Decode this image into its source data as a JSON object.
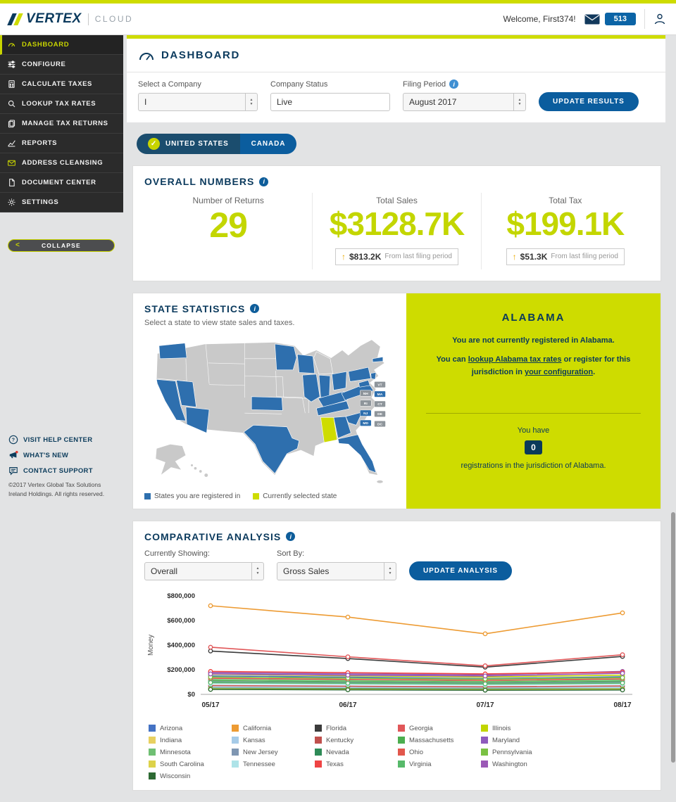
{
  "header": {
    "brand": "VERTEX",
    "brand_suffix": "CLOUD",
    "welcome": "Welcome, First374!",
    "mail_badge": "513"
  },
  "sidebar": {
    "items": [
      {
        "label": "DASHBOARD",
        "icon": "gauge-icon",
        "active": true
      },
      {
        "label": "CONFIGURE",
        "icon": "sliders-icon",
        "active": false
      },
      {
        "label": "CALCULATE TAXES",
        "icon": "calculator-icon",
        "active": false
      },
      {
        "label": "LOOKUP TAX RATES",
        "icon": "magnifier-icon",
        "active": false
      },
      {
        "label": "MANAGE TAX RETURNS",
        "icon": "copy-icon",
        "active": false
      },
      {
        "label": "REPORTS",
        "icon": "chart-icon",
        "active": false
      },
      {
        "label": "ADDRESS CLEANSING",
        "icon": "envelope-check-icon",
        "active": false
      },
      {
        "label": "DOCUMENT CENTER",
        "icon": "document-icon",
        "active": false
      },
      {
        "label": "SETTINGS",
        "icon": "gear-icon",
        "active": false
      }
    ],
    "collapse_label": "COLLAPSE",
    "help_links": [
      {
        "label": "VISIT HELP CENTER",
        "icon": "help-icon"
      },
      {
        "label": "WHAT'S NEW",
        "icon": "megaphone-icon"
      },
      {
        "label": "CONTACT SUPPORT",
        "icon": "chat-icon"
      }
    ],
    "copyright": "©2017 Vertex Global Tax Solutions Ireland Holdings. All rights reserved."
  },
  "page": {
    "title": "DASHBOARD"
  },
  "filters": {
    "company_label": "Select a Company",
    "company_value": "I",
    "status_label": "Company Status",
    "status_value": "Live",
    "period_label": "Filing Period",
    "period_value": "August 2017",
    "update_button": "UPDATE RESULTS"
  },
  "tabs": {
    "united_states": "UNITED STATES",
    "canada": "CANADA"
  },
  "overall": {
    "title": "OVERALL NUMBERS",
    "metrics": [
      {
        "label": "Number of Returns",
        "value": "29"
      },
      {
        "label": "Total Sales",
        "value": "$3128.7K",
        "delta": "$813.2K",
        "delta_note": "From last filing period"
      },
      {
        "label": "Total Tax",
        "value": "$199.1K",
        "delta": "$51.3K",
        "delta_note": "From last filing period"
      }
    ]
  },
  "state_statistics": {
    "title": "STATE STATISTICS",
    "subtitle": "Select a state to view state sales and taxes.",
    "legend": [
      {
        "label": "States you are registered in",
        "color": "#2e6fae"
      },
      {
        "label": "Currently selected state",
        "color": "#cedc00"
      }
    ],
    "registered_color": "#2e6fae",
    "selected_color": "#cedc00",
    "default_color": "#c9c9c9",
    "chip_default_color": "#8e959b",
    "registered_states": [
      "WA",
      "CA",
      "NV",
      "AZ",
      "TX",
      "KS",
      "MN",
      "WI",
      "IL",
      "IN",
      "OH",
      "PA",
      "KY",
      "TN",
      "VA",
      "MD",
      "SC",
      "GA",
      "FL",
      "MA",
      "NJ"
    ],
    "selected_state": "AL",
    "chips": [
      "VT",
      "NH",
      "MA",
      "RI",
      "CT",
      "NJ",
      "DE",
      "MD",
      "DC"
    ]
  },
  "selected_panel": {
    "state_name": "ALABAMA",
    "not_registered_text": "You are not currently registered in Alabama.",
    "info_pre": "You can ",
    "link_rates": "lookup Alabama tax rates",
    "info_mid": " or register for this jurisdiction in ",
    "link_config": "your configuration",
    "info_post": ".",
    "you_have": "You have",
    "registration_count": "0",
    "registrations_text": "registrations in the jurisdiction of Alabama."
  },
  "comparative": {
    "title": "COMPARATIVE ANALYSIS",
    "showing_label": "Currently Showing:",
    "showing_value": "Overall",
    "sort_label": "Sort By:",
    "sort_value": "Gross Sales",
    "update_button": "UPDATE ANALYSIS"
  },
  "chart_data": {
    "type": "line",
    "title": "COMPARATIVE ANALYSIS",
    "x": [
      "05/17",
      "06/17",
      "07/17",
      "08/17"
    ],
    "xlabel": "",
    "ylabel": "Money",
    "ylim": [
      0,
      800000
    ],
    "yticks": [
      "$0",
      "$200,000",
      "$400,000",
      "$600,000",
      "$800,000"
    ],
    "grid": false,
    "legend_position": "bottom",
    "series": [
      {
        "name": "Arizona",
        "color": "#4472c4",
        "values": [
          150000,
          140000,
          128000,
          143000
        ]
      },
      {
        "name": "California",
        "color": "#ed9b33",
        "values": [
          720000,
          628000,
          492000,
          662000
        ]
      },
      {
        "name": "Florida",
        "color": "#3b3b3b",
        "values": [
          352000,
          291000,
          221000,
          308000
        ]
      },
      {
        "name": "Georgia",
        "color": "#e15759",
        "values": [
          383000,
          305000,
          232000,
          322000
        ]
      },
      {
        "name": "Illinois",
        "color": "#c1d500",
        "values": [
          163000,
          151000,
          141000,
          156000
        ]
      },
      {
        "name": "Indiana",
        "color": "#e8d060",
        "values": [
          91000,
          85000,
          80000,
          88000
        ]
      },
      {
        "name": "Kansas",
        "color": "#a6cbe8",
        "values": [
          60000,
          55000,
          51000,
          57000
        ]
      },
      {
        "name": "Kentucky",
        "color": "#c0504d",
        "values": [
          71000,
          66000,
          61000,
          68000
        ]
      },
      {
        "name": "Massachusetts",
        "color": "#4cae4f",
        "values": [
          111000,
          102000,
          96000,
          106000
        ]
      },
      {
        "name": "Maryland",
        "color": "#8e5bbd",
        "values": [
          176000,
          166000,
          158000,
          186000
        ]
      },
      {
        "name": "Minnesota",
        "color": "#6fbf73",
        "values": [
          121000,
          112000,
          105000,
          116000
        ]
      },
      {
        "name": "New Jersey",
        "color": "#7f96b2",
        "values": [
          101000,
          95000,
          90000,
          98000
        ]
      },
      {
        "name": "Nevada",
        "color": "#2e8b57",
        "values": [
          50000,
          47000,
          44000,
          46000
        ]
      },
      {
        "name": "Ohio",
        "color": "#e2574c",
        "values": [
          131000,
          122000,
          114000,
          126000
        ]
      },
      {
        "name": "Pennsylvania",
        "color": "#7ac143",
        "values": [
          141000,
          132000,
          124000,
          136000
        ]
      },
      {
        "name": "South Carolina",
        "color": "#ddd24a",
        "values": [
          45000,
          42000,
          39000,
          43000
        ]
      },
      {
        "name": "Tennessee",
        "color": "#aee3e8",
        "values": [
          86000,
          81000,
          76000,
          83000
        ]
      },
      {
        "name": "Texas",
        "color": "#ef4444",
        "values": [
          186000,
          176000,
          166000,
          181000
        ]
      },
      {
        "name": "Virginia",
        "color": "#57b96a",
        "values": [
          96000,
          90000,
          85000,
          92000
        ]
      },
      {
        "name": "Washington",
        "color": "#9b59b6",
        "values": [
          166000,
          156000,
          149000,
          171000
        ]
      },
      {
        "name": "Wisconsin",
        "color": "#2d6a33",
        "values": [
          40000,
          37000,
          34000,
          36000
        ]
      }
    ]
  }
}
